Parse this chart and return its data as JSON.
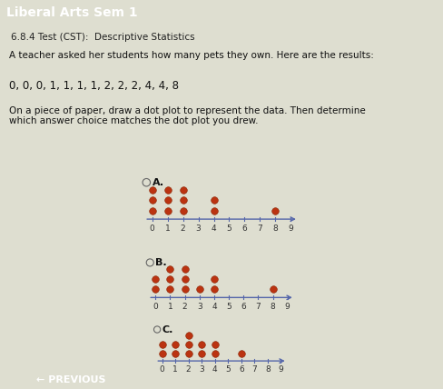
{
  "title_bar": "Liberal Arts Sem 1",
  "subtitle": "6.8.4 Test (CST):  Descriptive Statistics",
  "question_text": "A teacher asked her students how many pets they own. Here are the results:",
  "data_text": "0, 0, 0, 1, 1, 1, 1, 2, 2, 2, 4, 4, 8",
  "instruction_text": "On a piece of paper, draw a dot plot to represent the data. Then determine\nwhich answer choice matches the dot plot you drew.",
  "bg_color": "#deded0",
  "title_bg": "#2255aa",
  "subtitle_bg": "#c8c8d8",
  "dot_color": "#bb3311",
  "axis_color": "#5566aa",
  "text_color": "#111111",
  "choices": [
    "A.",
    "B.",
    "C."
  ],
  "dot_plots": {
    "A": {
      "0": 3,
      "1": 3,
      "2": 3,
      "4": 2,
      "8": 1
    },
    "B": {
      "0": 2,
      "1": 3,
      "2": 3,
      "3": 1,
      "4": 2,
      "8": 1
    },
    "C": {
      "0": 2,
      "1": 2,
      "2": 3,
      "3": 2,
      "4": 2,
      "6": 1
    }
  },
  "xmin": 0,
  "xmax": 9
}
